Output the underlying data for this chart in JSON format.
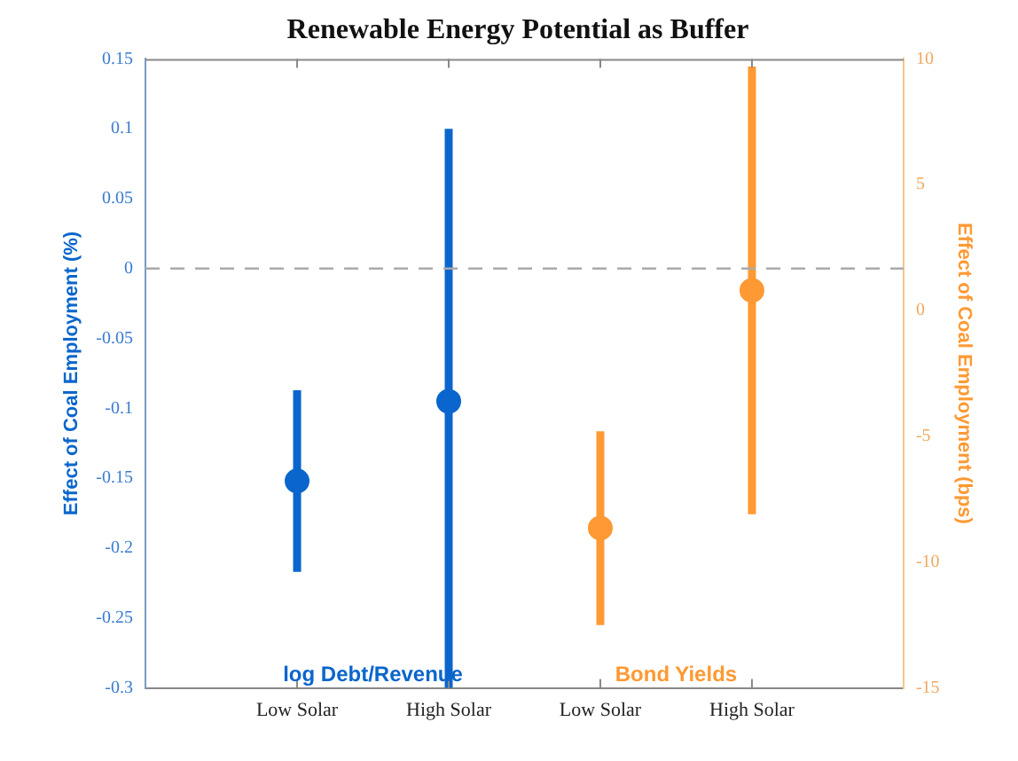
{
  "chart_data": {
    "type": "scatter",
    "title": "Renewable Energy Potential as Buffer",
    "categories": [
      "Low Solar",
      "High Solar",
      "Low Solar",
      "High Solar"
    ],
    "ylabel": "Effect of Coal Employment (%)",
    "y2label": "Effect of Coal Employment (bps)",
    "ylim": [
      -0.3,
      0.15
    ],
    "yticks": [
      -0.3,
      -0.25,
      -0.2,
      -0.15,
      -0.1,
      -0.05,
      0,
      0.05,
      0.1,
      0.15
    ],
    "y2lim": [
      -15,
      10
    ],
    "y2ticks": [
      -15,
      -10,
      -5,
      0,
      5,
      10
    ],
    "series": [
      {
        "name": "log Debt/Revenue",
        "color": "#0a66cc",
        "values": [
          -0.152,
          -0.095,
          null,
          null
        ],
        "errors": [
          [
            -0.217,
            -0.087
          ],
          [
            -0.3,
            0.1
          ],
          null,
          null
        ]
      },
      {
        "name": "Bond Yields",
        "color": "#ff9933",
        "axis": "y2",
        "values": [
          null,
          null,
          -8.65,
          0.8
        ],
        "errors": [
          null,
          null,
          [
            -12.5,
            -4.8
          ],
          [
            -8.1,
            9.7
          ]
        ]
      }
    ],
    "ref_lines": [
      {
        "axis": "y",
        "value": 0,
        "color": "#aaaaaa",
        "line_style": "dashed"
      }
    ],
    "marker": "circle",
    "grid": false,
    "legend": false
  }
}
